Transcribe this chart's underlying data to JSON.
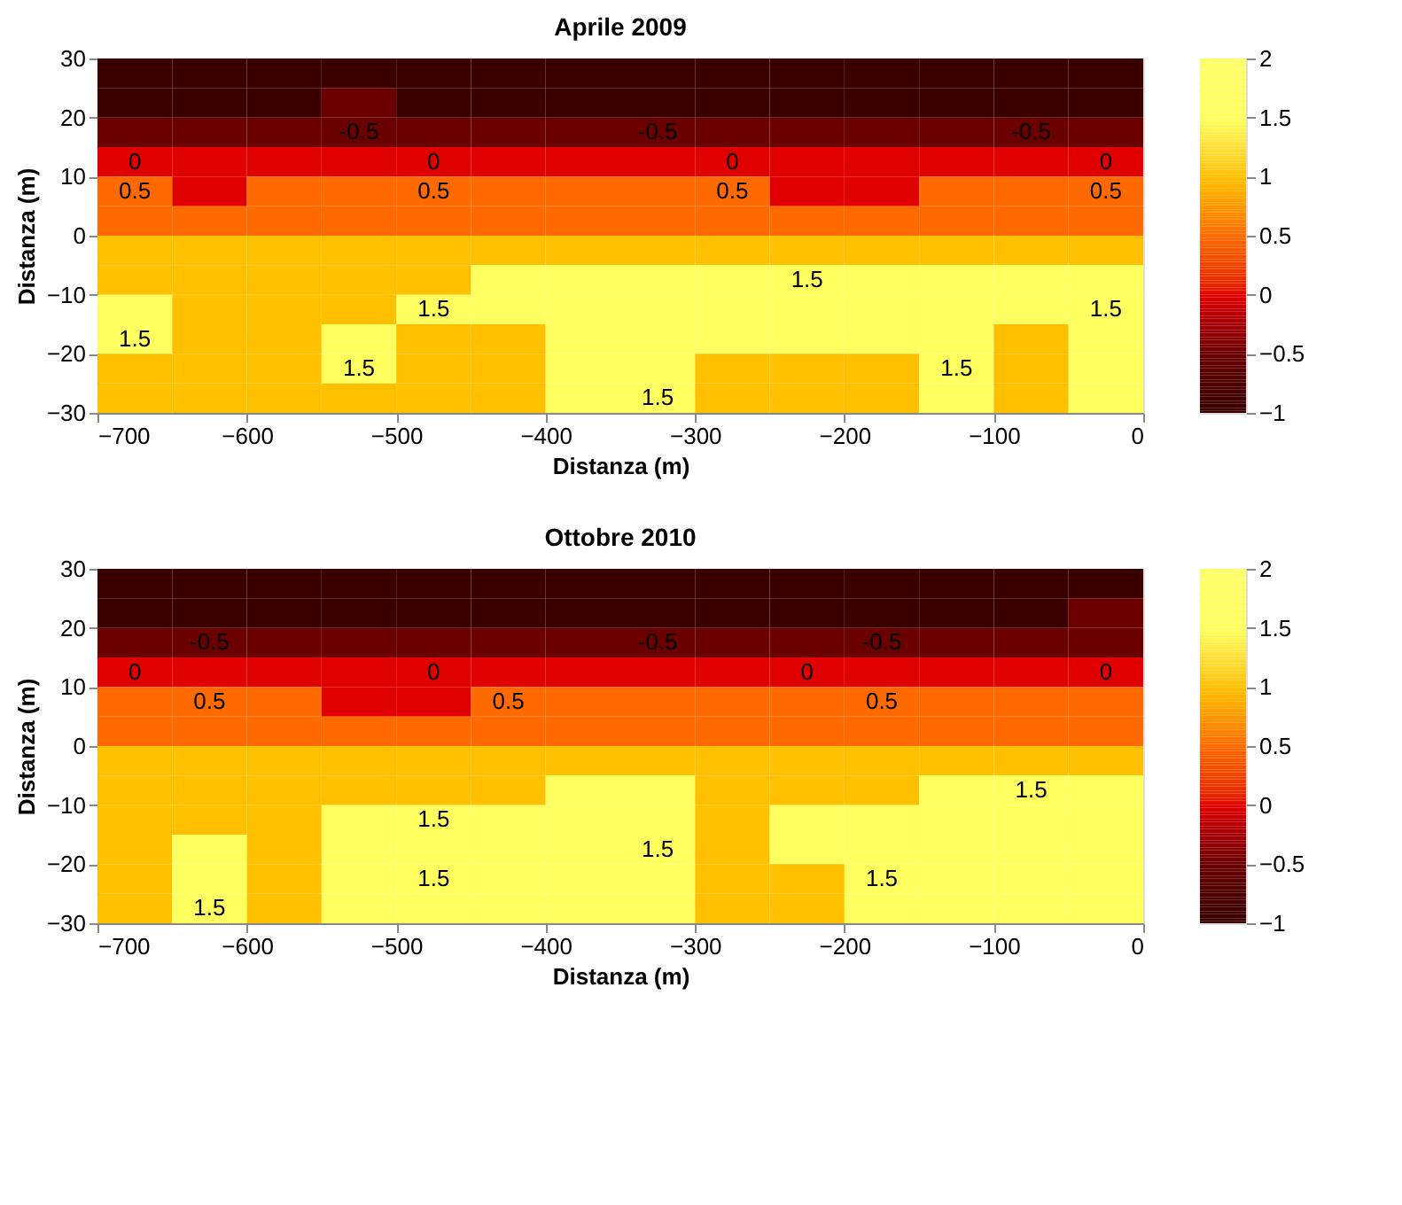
{
  "chart_data": [
    {
      "type": "heatmap",
      "title": "Aprile 2009",
      "xlabel": "Distanza (m)",
      "ylabel": "Distanza (m)",
      "x": [
        -675,
        -625,
        -575,
        -525,
        -475,
        -425,
        -375,
        -325,
        -275,
        -225,
        -175,
        -125,
        -75,
        -25
      ],
      "y": [
        27.5,
        22.5,
        17.5,
        12.5,
        7.5,
        2.5,
        -2.5,
        -7.5,
        -12.5,
        -17.5,
        -22.5,
        -27.5
      ],
      "cells": [
        [
          -1,
          -1,
          -1,
          -1,
          -1,
          -1,
          -1,
          -1,
          -1,
          -1,
          -1,
          -1,
          -1,
          -1
        ],
        [
          -1,
          -1,
          -1,
          -0.5,
          -1,
          -1,
          -1,
          -1,
          -1,
          -1,
          -1,
          -1,
          -1,
          -1
        ],
        [
          -0.5,
          -0.5,
          -0.5,
          -0.5,
          -0.5,
          -0.5,
          -0.5,
          -0.5,
          -0.5,
          -0.5,
          -0.5,
          -0.5,
          -0.5,
          -0.5
        ],
        [
          0,
          0,
          0,
          0,
          0,
          0,
          0,
          0,
          0,
          0,
          0,
          0,
          0,
          0
        ],
        [
          0.5,
          0,
          0.5,
          0.5,
          0.5,
          0.5,
          0.5,
          0.5,
          0.5,
          0,
          0,
          0.5,
          0.5,
          0.5
        ],
        [
          0.5,
          0.5,
          0.5,
          0.5,
          0.5,
          0.5,
          0.5,
          0.5,
          0.5,
          0.5,
          0.5,
          0.5,
          0.5,
          0.5
        ],
        [
          1,
          1,
          1,
          1,
          1,
          1,
          1,
          1,
          1,
          1,
          1,
          1,
          1,
          1
        ],
        [
          1,
          1,
          1,
          1,
          1,
          1.5,
          1.5,
          1.5,
          1.5,
          1.5,
          1.5,
          1.5,
          1.5,
          1.5
        ],
        [
          1.5,
          1,
          1,
          1,
          1.5,
          1.5,
          1.5,
          1.5,
          1.5,
          1.5,
          1.5,
          1.5,
          1.5,
          1.5
        ],
        [
          1.5,
          1,
          1,
          1.5,
          1,
          1,
          1.5,
          1.5,
          1.5,
          1.5,
          1.5,
          1.5,
          1,
          1.5
        ],
        [
          1,
          1,
          1,
          1.5,
          1,
          1,
          1.5,
          1.5,
          1,
          1,
          1,
          1.5,
          1,
          1.5
        ],
        [
          1,
          1,
          1,
          1,
          1,
          1,
          1.5,
          1.5,
          1,
          1,
          1,
          1.5,
          1,
          1.5
        ]
      ],
      "cell_labels": [
        [
          null,
          null,
          null,
          null,
          null,
          null,
          null,
          null,
          null,
          null,
          null,
          null,
          null,
          null
        ],
        [
          null,
          null,
          null,
          null,
          null,
          null,
          null,
          null,
          null,
          null,
          null,
          null,
          null,
          null
        ],
        [
          null,
          null,
          null,
          "-0.5",
          null,
          null,
          null,
          "-0.5",
          null,
          null,
          null,
          null,
          "-0.5",
          null
        ],
        [
          "0",
          null,
          null,
          null,
          "0",
          null,
          null,
          null,
          "0",
          null,
          null,
          null,
          null,
          "0"
        ],
        [
          "0.5",
          null,
          null,
          null,
          "0.5",
          null,
          null,
          null,
          "0.5",
          null,
          null,
          null,
          null,
          "0.5"
        ],
        [
          null,
          null,
          null,
          null,
          null,
          null,
          null,
          null,
          null,
          null,
          null,
          null,
          null,
          null
        ],
        [
          null,
          null,
          null,
          null,
          null,
          null,
          null,
          null,
          null,
          null,
          null,
          null,
          null,
          null
        ],
        [
          null,
          null,
          null,
          null,
          null,
          null,
          null,
          null,
          null,
          "1.5",
          null,
          null,
          null,
          null
        ],
        [
          null,
          null,
          null,
          null,
          "1.5",
          null,
          null,
          null,
          null,
          null,
          null,
          null,
          null,
          "1.5"
        ],
        [
          "1.5",
          null,
          null,
          null,
          null,
          null,
          null,
          null,
          null,
          null,
          null,
          null,
          null,
          null
        ],
        [
          null,
          null,
          null,
          "1.5",
          null,
          null,
          null,
          null,
          null,
          null,
          null,
          "1.5",
          null,
          null
        ],
        [
          null,
          null,
          null,
          null,
          null,
          null,
          null,
          "1.5",
          null,
          null,
          null,
          null,
          null,
          null
        ]
      ],
      "xlim": [
        -700,
        0
      ],
      "xticks": [
        -700,
        -600,
        -500,
        -400,
        -300,
        -200,
        -100,
        0
      ],
      "ylim": [
        -30,
        30
      ],
      "yticks": [
        -30,
        -20,
        -10,
        0,
        10,
        20,
        30
      ],
      "clim": [
        -1,
        2
      ],
      "cticks": [
        -1,
        -0.5,
        0,
        0.5,
        1,
        1.5,
        2
      ]
    },
    {
      "type": "heatmap",
      "title": "Ottobre 2010",
      "xlabel": "Distanza (m)",
      "ylabel": "Distanza (m)",
      "x": [
        -675,
        -625,
        -575,
        -525,
        -475,
        -425,
        -375,
        -325,
        -275,
        -225,
        -175,
        -125,
        -75,
        -25
      ],
      "y": [
        27.5,
        22.5,
        17.5,
        12.5,
        7.5,
        2.5,
        -2.5,
        -7.5,
        -12.5,
        -17.5,
        -22.5,
        -27.5
      ],
      "cells": [
        [
          -1,
          -1,
          -1,
          -1,
          -1,
          -1,
          -1,
          -1,
          -1,
          -1,
          -1,
          -1,
          -1,
          -1
        ],
        [
          -1,
          -1,
          -1,
          -1,
          -1,
          -1,
          -1,
          -1,
          -1,
          -1,
          -1,
          -1,
          -1,
          -0.5
        ],
        [
          -0.5,
          -0.5,
          -0.5,
          -0.5,
          -0.5,
          -0.5,
          -0.5,
          -0.5,
          -0.5,
          -0.5,
          -0.5,
          -0.5,
          -0.5,
          -0.5
        ],
        [
          0,
          0,
          0,
          0,
          0,
          0,
          0,
          0,
          0,
          0,
          0,
          0,
          0,
          0
        ],
        [
          0.5,
          0.5,
          0.5,
          0,
          0,
          0.5,
          0.5,
          0.5,
          0.5,
          0.5,
          0.5,
          0.5,
          0.5,
          0.5
        ],
        [
          0.5,
          0.5,
          0.5,
          0.5,
          0.5,
          0.5,
          0.5,
          0.5,
          0.5,
          0.5,
          0.5,
          0.5,
          0.5,
          0.5
        ],
        [
          1,
          1,
          1,
          1,
          1,
          1,
          1,
          1,
          1,
          1,
          1,
          1,
          1,
          1
        ],
        [
          1,
          1,
          1,
          1,
          1,
          1,
          1.5,
          1.5,
          1,
          1,
          1,
          1.5,
          1.5,
          1.5
        ],
        [
          1,
          1,
          1,
          1.5,
          1.5,
          1.5,
          1.5,
          1.5,
          1,
          1.5,
          1.5,
          1.5,
          1.5,
          1.5
        ],
        [
          1,
          1.5,
          1,
          1.5,
          1.5,
          1.5,
          1.5,
          1.5,
          1,
          1.5,
          1.5,
          1.5,
          1.5,
          1.5
        ],
        [
          1,
          1.5,
          1,
          1.5,
          1.5,
          1.5,
          1.5,
          1.5,
          1,
          1,
          1.5,
          1.5,
          1.5,
          1.5
        ],
        [
          1,
          1.5,
          1,
          1.5,
          1.5,
          1.5,
          1.5,
          1.5,
          1,
          1,
          1.5,
          1.5,
          1.5,
          1.5
        ]
      ],
      "cell_labels": [
        [
          null,
          null,
          null,
          null,
          null,
          null,
          null,
          null,
          null,
          null,
          null,
          null,
          null,
          null
        ],
        [
          null,
          null,
          null,
          null,
          null,
          null,
          null,
          null,
          null,
          null,
          null,
          null,
          null,
          null
        ],
        [
          null,
          "-0.5",
          null,
          null,
          null,
          null,
          null,
          "-0.5",
          null,
          null,
          "-0.5",
          null,
          null,
          null
        ],
        [
          "0",
          null,
          null,
          null,
          "0",
          null,
          null,
          null,
          null,
          "0",
          null,
          null,
          null,
          "0"
        ],
        [
          null,
          "0.5",
          null,
          null,
          null,
          "0.5",
          null,
          null,
          null,
          null,
          "0.5",
          null,
          null,
          null
        ],
        [
          null,
          null,
          null,
          null,
          null,
          null,
          null,
          null,
          null,
          null,
          null,
          null,
          null,
          null
        ],
        [
          null,
          null,
          null,
          null,
          null,
          null,
          null,
          null,
          null,
          null,
          null,
          null,
          null,
          null
        ],
        [
          null,
          null,
          null,
          null,
          null,
          null,
          null,
          null,
          null,
          null,
          null,
          null,
          "1.5",
          null
        ],
        [
          null,
          null,
          null,
          null,
          "1.5",
          null,
          null,
          null,
          null,
          null,
          null,
          null,
          null,
          null
        ],
        [
          null,
          null,
          null,
          null,
          null,
          null,
          null,
          "1.5",
          null,
          null,
          null,
          null,
          null,
          null
        ],
        [
          null,
          null,
          null,
          null,
          "1.5",
          null,
          null,
          null,
          null,
          null,
          "1.5",
          null,
          null,
          null
        ],
        [
          null,
          "1.5",
          null,
          null,
          null,
          null,
          null,
          null,
          null,
          null,
          null,
          null,
          null,
          null
        ]
      ],
      "xlim": [
        -700,
        0
      ],
      "xticks": [
        -700,
        -600,
        -500,
        -400,
        -300,
        -200,
        -100,
        0
      ],
      "ylim": [
        -30,
        30
      ],
      "yticks": [
        -30,
        -20,
        -10,
        0,
        10,
        20,
        30
      ],
      "clim": [
        -1,
        2
      ],
      "cticks": [
        -1,
        -0.5,
        0,
        0.5,
        1,
        1.5,
        2
      ]
    }
  ]
}
